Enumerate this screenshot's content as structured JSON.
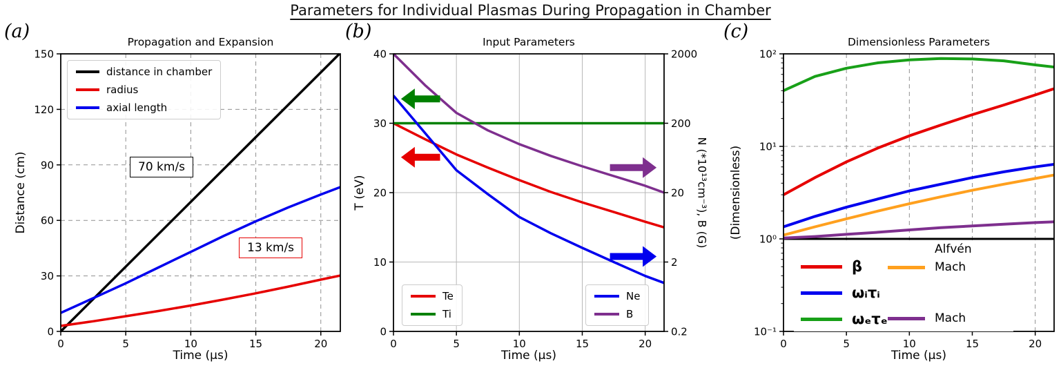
{
  "figure_title": "Parameters for Individual Plasmas During Propagation in Chamber",
  "chart_data": [
    {
      "type": "line",
      "panel_label": "(a)",
      "title": "Propagation and Expansion",
      "xlabel": "Time (μs)",
      "ylabel": "Distance (cm)",
      "xlim": [
        0,
        21.5
      ],
      "xticks": [
        {
          "v": 0,
          "label": "0"
        },
        {
          "v": 5,
          "label": "5"
        },
        {
          "v": 10,
          "label": "10"
        },
        {
          "v": 15,
          "label": "15"
        },
        {
          "v": 20,
          "label": "20"
        }
      ],
      "yaxis": {
        "scale": "linear",
        "lim": [
          0,
          150
        ],
        "ticks": [
          {
            "v": 0,
            "label": "0"
          },
          {
            "v": 30,
            "label": "30"
          },
          {
            "v": 60,
            "label": "60"
          },
          {
            "v": 90,
            "label": "90"
          },
          {
            "v": 120,
            "label": "120"
          },
          {
            "v": 150,
            "label": "150"
          }
        ]
      },
      "grid": "dashed",
      "legend_position": "upper left",
      "series": [
        {
          "name": "distance-in-chamber",
          "label": "distance in chamber",
          "color": "#000000",
          "width": 3.5,
          "axis": "left",
          "x": [
            0,
            21.43
          ],
          "y": [
            0,
            150
          ]
        },
        {
          "name": "radius",
          "label": "radius",
          "color": "#e60000",
          "width": 3.5,
          "axis": "left",
          "x": [
            0,
            2.5,
            5,
            7.5,
            10,
            12.5,
            15,
            17.5,
            20,
            21.5
          ],
          "y": [
            3,
            5.5,
            8.2,
            11,
            14,
            17.2,
            20.6,
            24.2,
            28,
            30.2
          ]
        },
        {
          "name": "axial-length",
          "label": "axial length",
          "color": "#0000ee",
          "width": 3.5,
          "axis": "left",
          "x": [
            0,
            2.5,
            5,
            7.5,
            10,
            12.5,
            15,
            17.5,
            20,
            21.5
          ],
          "y": [
            10,
            18,
            26,
            34.5,
            43,
            51.5,
            59.5,
            67,
            74,
            78
          ]
        }
      ],
      "annotations": [
        {
          "text": "70 km/s",
          "border_color": "#000000"
        },
        {
          "text": "13 km/s",
          "border_color": "#e60000"
        }
      ]
    },
    {
      "type": "line",
      "panel_label": "(b)",
      "title": "Input Parameters",
      "xlabel": "Time (μs)",
      "ylabel": "T (eV)",
      "ylabel_right": "N (*10¹³cm⁻³), B (G)",
      "xlim": [
        0,
        21.5
      ],
      "xticks": [
        {
          "v": 0,
          "label": "0"
        },
        {
          "v": 5,
          "label": "5"
        },
        {
          "v": 10,
          "label": "10"
        },
        {
          "v": 15,
          "label": "15"
        },
        {
          "v": 20,
          "label": "20"
        }
      ],
      "yaxis": {
        "scale": "linear",
        "lim": [
          0,
          40
        ],
        "ticks": [
          {
            "v": 0,
            "label": "0"
          },
          {
            "v": 10,
            "label": "10"
          },
          {
            "v": 20,
            "label": "20"
          },
          {
            "v": 30,
            "label": "30"
          },
          {
            "v": 40,
            "label": "40"
          }
        ]
      },
      "yaxis2": {
        "scale": "log",
        "lim": [
          0.2,
          2000
        ],
        "ticks": [
          {
            "v": 2000,
            "label": "2000"
          },
          {
            "v": 200,
            "label": "200"
          },
          {
            "v": 20,
            "label": "20"
          },
          {
            "v": 2,
            "label": "2"
          },
          {
            "v": 0.2,
            "label": "0.2"
          }
        ]
      },
      "grid": "solid",
      "series": [
        {
          "name": "Te",
          "label": "Te",
          "color": "#e60000",
          "width": 3.5,
          "axis": "left",
          "x": [
            0,
            2.5,
            5,
            7.5,
            10,
            12.5,
            15,
            17.5,
            20,
            21.5
          ],
          "y": [
            30,
            27.7,
            25.5,
            23.6,
            21.8,
            20.1,
            18.6,
            17.2,
            15.8,
            15
          ]
        },
        {
          "name": "Ti",
          "label": "Ti",
          "color": "#008000",
          "width": 3.5,
          "axis": "left",
          "x": [
            0,
            21.5
          ],
          "y": [
            30,
            30
          ]
        },
        {
          "name": "Ne",
          "label": "Ne",
          "color": "#0000ee",
          "width": 3.5,
          "axis": "right",
          "x": [
            0,
            2.5,
            5,
            7.5,
            10,
            12.5,
            15,
            17.5,
            20,
            21.5
          ],
          "y": [
            500,
            145,
            42,
            19,
            8.9,
            5.2,
            3.2,
            2.0,
            1.26,
            1.0
          ]
        },
        {
          "name": "B",
          "label": "B",
          "color": "#7e2f8e",
          "width": 3.5,
          "axis": "right",
          "x": [
            0,
            2.5,
            5,
            7.5,
            10,
            12.5,
            15,
            17.5,
            20,
            21.5
          ],
          "y": [
            2000,
            708,
            282,
            158,
            100,
            67.6,
            47.9,
            34.7,
            25.1,
            20
          ]
        }
      ],
      "arrows": [
        {
          "name": "ti-left-axis",
          "color": "#008000",
          "x_tail": 3.7,
          "x_tip": 0.6,
          "y": 33.5
        },
        {
          "name": "te-left-axis",
          "color": "#e60000",
          "x_tail": 3.7,
          "x_tip": 0.6,
          "y": 25.1
        },
        {
          "name": "b-right-axis",
          "color": "#7e2f8e",
          "x_tail": 17.2,
          "x_tip": 20.9,
          "y": 23.6
        },
        {
          "name": "ne-right-axis",
          "color": "#0000ee",
          "x_tail": 17.2,
          "x_tip": 20.9,
          "y": 10.8
        }
      ]
    },
    {
      "type": "line",
      "panel_label": "(c)",
      "title": "Dimensionless Parameters",
      "xlabel": "Time (μs)",
      "ylabel": "(Dimensionless)",
      "xlim": [
        0,
        21.5
      ],
      "xticks": [
        {
          "v": 0,
          "label": "0"
        },
        {
          "v": 5,
          "label": "5"
        },
        {
          "v": 10,
          "label": "10"
        },
        {
          "v": 15,
          "label": "15"
        },
        {
          "v": 20,
          "label": "20"
        }
      ],
      "yaxis": {
        "scale": "log",
        "lim": [
          0.1,
          100
        ],
        "ticks": [
          {
            "v": 100,
            "label": "10²"
          },
          {
            "v": 10,
            "label": "10¹"
          },
          {
            "v": 1,
            "label": "10⁰"
          },
          {
            "v": 0.1,
            "label": "10⁻¹"
          }
        ]
      },
      "grid": "dashed",
      "series": [
        {
          "name": "unity-line",
          "label": "",
          "color": "#000000",
          "width": 3,
          "axis": "left",
          "x": [
            0,
            21.5
          ],
          "y": [
            1,
            1
          ]
        },
        {
          "name": "omega-e-tau-e",
          "label": "ωₑτₑ",
          "color": "#18a018",
          "width": 4,
          "axis": "left",
          "x": [
            0,
            2.5,
            5,
            7.5,
            10,
            12.5,
            15,
            17.5,
            20,
            21.5
          ],
          "y": [
            40,
            57,
            70,
            80,
            86,
            89,
            88,
            84,
            76,
            72
          ]
        },
        {
          "name": "beta",
          "label": "β",
          "color": "#e60000",
          "width": 4,
          "axis": "left",
          "x": [
            0,
            2.5,
            5,
            7.5,
            10,
            12.5,
            15,
            17.5,
            20,
            21.5
          ],
          "y": [
            3,
            4.6,
            6.8,
            9.6,
            13,
            17,
            22,
            28,
            36,
            42
          ]
        },
        {
          "name": "omega-i-tau-i",
          "label": "ωᵢτᵢ",
          "color": "#0000ee",
          "width": 4,
          "axis": "left",
          "x": [
            0,
            2.5,
            5,
            7.5,
            10,
            12.5,
            15,
            17.5,
            20,
            21.5
          ],
          "y": [
            1.35,
            1.75,
            2.2,
            2.7,
            3.3,
            3.9,
            4.6,
            5.3,
            6.0,
            6.4
          ]
        },
        {
          "name": "alfven-mach",
          "label": "Alfvén Mach",
          "color": "#ffa01e",
          "width": 4,
          "axis": "left",
          "x": [
            0,
            2.5,
            5,
            7.5,
            10,
            12.5,
            15,
            17.5,
            20,
            21.5
          ],
          "y": [
            1.1,
            1.35,
            1.65,
            2.0,
            2.4,
            2.85,
            3.35,
            3.9,
            4.5,
            4.9
          ]
        },
        {
          "name": "mach",
          "label": "Mach",
          "color": "#7e2f8e",
          "width": 4,
          "axis": "left",
          "x": [
            0,
            2.5,
            5,
            7.5,
            10,
            12.5,
            15,
            17.5,
            20,
            21.5
          ],
          "y": [
            1.02,
            1.06,
            1.12,
            1.18,
            1.25,
            1.32,
            1.38,
            1.44,
            1.5,
            1.53
          ]
        }
      ],
      "legend": {
        "beta_label": "β",
        "omega_i_label": "ωᵢτᵢ",
        "omega_e_label": "ωₑτₑ",
        "alfven_line1": "Alfvén",
        "alfven_line2": "Mach",
        "mach_label": "Mach"
      }
    }
  ]
}
